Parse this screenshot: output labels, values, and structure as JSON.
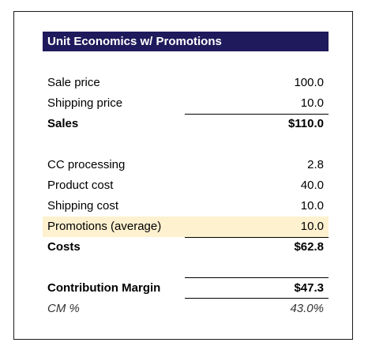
{
  "header": {
    "title": "Unit Economics w/ Promotions"
  },
  "revenue": [
    {
      "label": "Sale price",
      "value": "100.0"
    },
    {
      "label": "Shipping price",
      "value": "10.0"
    }
  ],
  "sales": {
    "label": "Sales",
    "value": "$110.0"
  },
  "cost_items": [
    {
      "label": "CC processing",
      "value": "2.8"
    },
    {
      "label": "Product cost",
      "value": "40.0"
    },
    {
      "label": "Shipping cost",
      "value": "10.0"
    },
    {
      "label": "Promotions (average)",
      "value": "10.0"
    }
  ],
  "costs": {
    "label": "Costs",
    "value": "$62.8"
  },
  "contribution_margin": {
    "label": "Contribution Margin",
    "value": "$47.3"
  },
  "cm_percent": {
    "label": "CM %",
    "value": "43.0%"
  },
  "colors": {
    "header_bg": "#1f1a5c",
    "highlight_bg": "#fdf1cf"
  }
}
